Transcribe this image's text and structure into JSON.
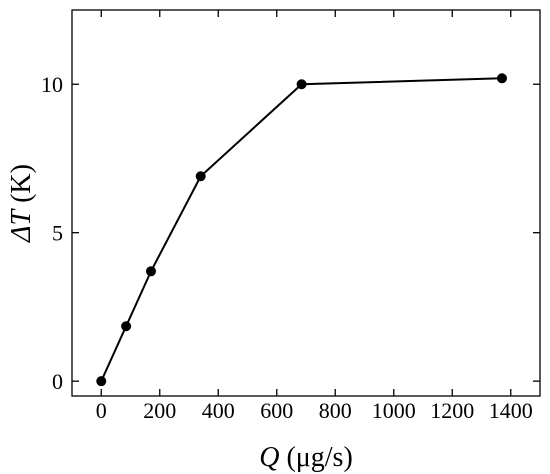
{
  "chart_data": {
    "type": "line",
    "title": "",
    "xlabel": {
      "symbol": "Q",
      "unit": " (μg/s)"
    },
    "ylabel": {
      "symbol": "ΔT",
      "unit": " (K)"
    },
    "xlim": [
      -100,
      1500
    ],
    "ylim": [
      -0.5,
      12.5
    ],
    "xticks": [
      0,
      200,
      400,
      600,
      800,
      1000,
      1200,
      1400
    ],
    "yticks": [
      0,
      5,
      10
    ],
    "grid": false,
    "series": [
      {
        "x": [
          0,
          85,
          170,
          340,
          685,
          1370
        ],
        "y": [
          0,
          1.85,
          3.7,
          6.9,
          10.0,
          10.2
        ]
      }
    ]
  }
}
